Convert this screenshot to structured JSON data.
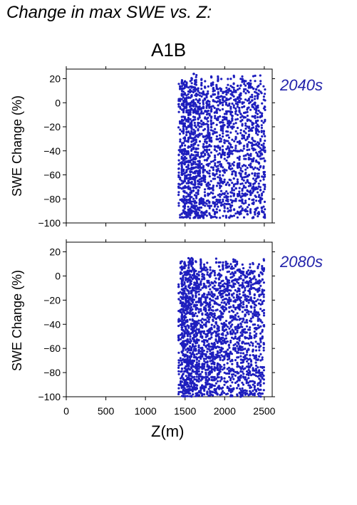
{
  "figure": {
    "title": "Change in max SWE vs. Z:",
    "scenario": "A1B",
    "xlabel": "Z(m)",
    "marker_color": "#1e1ebe",
    "label_color": "#2222aa"
  },
  "chart_data": [
    {
      "type": "scatter",
      "title": "2040s",
      "xlabel": "",
      "ylabel": "SWE Change (%)",
      "xlim": [
        0,
        2600
      ],
      "ylim": [
        -100,
        28
      ],
      "yticks": [
        20,
        0,
        -20,
        -40,
        -60,
        -80,
        -100
      ],
      "ytick_labels": [
        "20",
        "0",
        "−20",
        "−40",
        "−60",
        "−80",
        "−100"
      ],
      "x_range_data": [
        1420,
        2510
      ],
      "y_range_data": [
        -96,
        24
      ],
      "outliers": [
        {
          "x": 1610,
          "y": 24
        }
      ],
      "grid": false,
      "series": [
        {
          "color": "#1e1ebe",
          "density": [
            [
              1450,
              0.9
            ],
            [
              1560,
              1.0
            ],
            [
              1650,
              0.8
            ],
            [
              1750,
              0.55
            ],
            [
              1900,
              0.45
            ],
            [
              2100,
              0.4
            ],
            [
              2300,
              0.4
            ],
            [
              2500,
              0.3
            ]
          ]
        }
      ]
    },
    {
      "type": "scatter",
      "title": "2080s",
      "xlabel": "Z(m)",
      "ylabel": "SWE Change (%)",
      "xlim": [
        0,
        2600
      ],
      "ylim": [
        -100,
        28
      ],
      "xticks": [
        0,
        500,
        1000,
        1500,
        2000,
        2500
      ],
      "xtick_labels": [
        "0",
        "500",
        "1000",
        "1500",
        "2000",
        "2500"
      ],
      "yticks": [
        20,
        0,
        -20,
        -40,
        -60,
        -80,
        -100
      ],
      "ytick_labels": [
        "20",
        "0",
        "−20",
        "−40",
        "−60",
        "−80",
        "−100"
      ],
      "x_range_data": [
        1420,
        2510
      ],
      "y_range_data": [
        -100,
        16
      ],
      "grid": false,
      "series": [
        {
          "color": "#1e1ebe",
          "density": [
            [
              1450,
              1.0
            ],
            [
              1560,
              1.0
            ],
            [
              1650,
              0.9
            ],
            [
              1750,
              0.6
            ],
            [
              1900,
              0.5
            ],
            [
              2100,
              0.45
            ],
            [
              2300,
              0.45
            ],
            [
              2500,
              0.35
            ]
          ]
        }
      ]
    }
  ]
}
